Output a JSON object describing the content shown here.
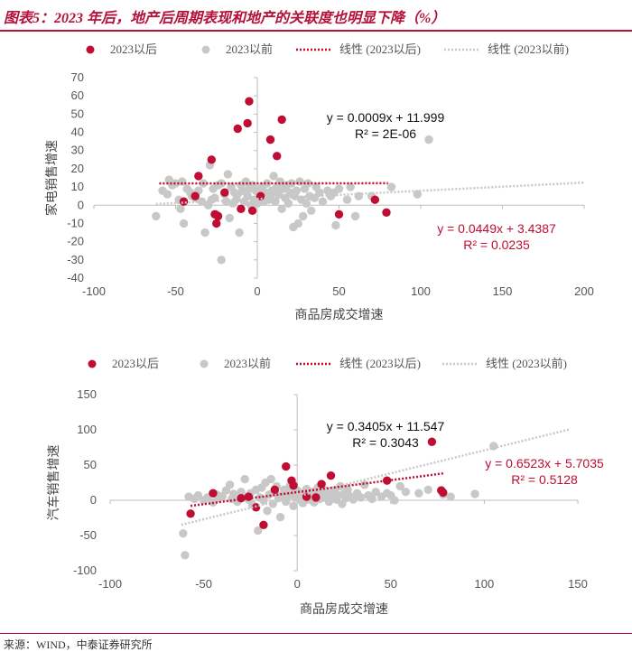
{
  "header": {
    "title": "图表5：2023 年后，地产后周期表现和地产的关联度也明显下降（%）"
  },
  "footer": {
    "source": "来源：WIND，中泰证券研究所"
  },
  "colors": {
    "after": "#c00d33",
    "before": "#c8c8c8",
    "title": "#b5123b"
  },
  "legend": {
    "after": "2023以后",
    "before": "2023以前",
    "trend_after": "线性 (2023以后)",
    "trend_before": "线性 (2023以前)"
  },
  "chart_data": [
    {
      "type": "scatter",
      "title": "",
      "xlabel": "商品房成交增速",
      "ylabel": "家电销售增速",
      "xlim": [
        -100,
        200
      ],
      "ylim": [
        -40,
        70
      ],
      "xticks": [
        -100,
        -50,
        0,
        50,
        100,
        150,
        200
      ],
      "yticks": [
        -40,
        -30,
        -20,
        -10,
        0,
        10,
        20,
        30,
        40,
        50,
        60,
        70
      ],
      "series": [
        {
          "name": "2023以后",
          "points": [
            [
              -45,
              2
            ],
            [
              -38,
              5
            ],
            [
              -36,
              16
            ],
            [
              -28,
              25
            ],
            [
              -26,
              -5
            ],
            [
              -25,
              -10
            ],
            [
              -24,
              -6
            ],
            [
              -20,
              7
            ],
            [
              -12,
              42
            ],
            [
              -10,
              -2
            ],
            [
              -6,
              45
            ],
            [
              -5,
              57
            ],
            [
              -3,
              -3
            ],
            [
              2,
              5
            ],
            [
              8,
              36
            ],
            [
              12,
              27
            ],
            [
              15,
              47
            ],
            [
              50,
              -5
            ],
            [
              72,
              3
            ],
            [
              79,
              -4
            ]
          ]
        },
        {
          "name": "2023以前",
          "points": [
            [
              -62,
              -6
            ],
            [
              -58,
              8
            ],
            [
              -55,
              6
            ],
            [
              -54,
              14
            ],
            [
              -52,
              11
            ],
            [
              -50,
              12
            ],
            [
              -48,
              3
            ],
            [
              -47,
              -2
            ],
            [
              -46,
              13
            ],
            [
              -45,
              -10
            ],
            [
              -43,
              9
            ],
            [
              -41,
              7
            ],
            [
              -40,
              5
            ],
            [
              -38,
              4
            ],
            [
              -36,
              8
            ],
            [
              -34,
              2
            ],
            [
              -33,
              12
            ],
            [
              -32,
              -15
            ],
            [
              -30,
              0
            ],
            [
              -29,
              22
            ],
            [
              -28,
              3
            ],
            [
              -27,
              9
            ],
            [
              -26,
              4
            ],
            [
              -25,
              -5
            ],
            [
              -24,
              11
            ],
            [
              -22,
              -30
            ],
            [
              -22,
              12
            ],
            [
              -20,
              6
            ],
            [
              -19,
              2
            ],
            [
              -18,
              17
            ],
            [
              -17,
              -7
            ],
            [
              -16,
              10
            ],
            [
              -15,
              1
            ],
            [
              -14,
              7
            ],
            [
              -13,
              3
            ],
            [
              -12,
              6
            ],
            [
              -11,
              -15
            ],
            [
              -10,
              11
            ],
            [
              -9,
              8
            ],
            [
              -8,
              2
            ],
            [
              -7,
              13
            ],
            [
              -6,
              5
            ],
            [
              -5,
              9
            ],
            [
              -4,
              0
            ],
            [
              -3,
              11
            ],
            [
              -2,
              3
            ],
            [
              -1,
              8
            ],
            [
              0,
              1
            ],
            [
              1,
              6
            ],
            [
              2,
              9
            ],
            [
              3,
              10
            ],
            [
              4,
              2
            ],
            [
              5,
              7
            ],
            [
              6,
              12
            ],
            [
              7,
              3
            ],
            [
              8,
              5
            ],
            [
              9,
              8
            ],
            [
              10,
              16
            ],
            [
              11,
              2
            ],
            [
              12,
              10
            ],
            [
              13,
              6
            ],
            [
              14,
              13
            ],
            [
              15,
              -2
            ],
            [
              16,
              9
            ],
            [
              17,
              4
            ],
            [
              18,
              11
            ],
            [
              19,
              1
            ],
            [
              20,
              7
            ],
            [
              21,
              12
            ],
            [
              22,
              -12
            ],
            [
              23,
              5
            ],
            [
              24,
              8
            ],
            [
              25,
              -10
            ],
            [
              26,
              13
            ],
            [
              27,
              3
            ],
            [
              28,
              -6
            ],
            [
              29,
              9
            ],
            [
              30,
              1
            ],
            [
              31,
              12
            ],
            [
              32,
              5
            ],
            [
              33,
              -3
            ],
            [
              35,
              4
            ],
            [
              36,
              10
            ],
            [
              38,
              7
            ],
            [
              40,
              2
            ],
            [
              43,
              8
            ],
            [
              45,
              5
            ],
            [
              47,
              7
            ],
            [
              48,
              -11
            ],
            [
              50,
              9
            ],
            [
              55,
              3
            ],
            [
              57,
              10
            ],
            [
              60,
              -6
            ],
            [
              62,
              5
            ],
            [
              70,
              5
            ],
            [
              82,
              10
            ],
            [
              98,
              6
            ],
            [
              105,
              36
            ]
          ]
        }
      ],
      "trendlines": [
        {
          "series": "2023以后",
          "slope": 0.0009,
          "intercept": 11.999,
          "x_range": [
            -60,
            80
          ],
          "equation": "y = 0.0009x + 11.999",
          "r2": "R² = 2E-06"
        },
        {
          "series": "2023以前",
          "slope": 0.0449,
          "intercept": 3.4387,
          "x_range": [
            -62,
            200
          ],
          "equation": "y = 0.0449x + 3.4387",
          "r2": "R² = 0.0235"
        }
      ]
    },
    {
      "type": "scatter",
      "title": "",
      "xlabel": "商品房成交增速",
      "ylabel": "汽车销售增速",
      "xlim": [
        -100,
        150
      ],
      "ylim": [
        -100,
        150
      ],
      "xticks": [
        -100,
        -50,
        0,
        50,
        100,
        150
      ],
      "yticks": [
        -100,
        -50,
        0,
        50,
        100,
        150
      ],
      "series": [
        {
          "name": "2023以后",
          "points": [
            [
              -57,
              -19
            ],
            [
              -45,
              10
            ],
            [
              -30,
              3
            ],
            [
              -26,
              5
            ],
            [
              -22,
              -10
            ],
            [
              -18,
              -35
            ],
            [
              -12,
              15
            ],
            [
              -6,
              48
            ],
            [
              -3,
              28
            ],
            [
              -2,
              21
            ],
            [
              5,
              5
            ],
            [
              10,
              4
            ],
            [
              13,
              23
            ],
            [
              18,
              35
            ],
            [
              48,
              28
            ],
            [
              72,
              83
            ],
            [
              77,
              14
            ],
            [
              78,
              11
            ]
          ]
        },
        {
          "name": "2023以前",
          "points": [
            [
              -61,
              -47
            ],
            [
              -60,
              -78
            ],
            [
              -58,
              5
            ],
            [
              -55,
              2
            ],
            [
              -53,
              7
            ],
            [
              -50,
              0
            ],
            [
              -48,
              4
            ],
            [
              -45,
              -3
            ],
            [
              -43,
              8
            ],
            [
              -42,
              3
            ],
            [
              -40,
              6
            ],
            [
              -38,
              14
            ],
            [
              -36,
              22
            ],
            [
              -35,
              2
            ],
            [
              -34,
              9
            ],
            [
              -32,
              -2
            ],
            [
              -30,
              12
            ],
            [
              -29,
              6
            ],
            [
              -28,
              30
            ],
            [
              -26,
              1
            ],
            [
              -25,
              10
            ],
            [
              -24,
              -6
            ],
            [
              -22,
              15
            ],
            [
              -21,
              -43
            ],
            [
              -20,
              4
            ],
            [
              -19,
              18
            ],
            [
              -18,
              0
            ],
            [
              -17,
              25
            ],
            [
              -16,
              -15
            ],
            [
              -15,
              8
            ],
            [
              -14,
              30
            ],
            [
              -13,
              -5
            ],
            [
              -12,
              12
            ],
            [
              -11,
              20
            ],
            [
              -10,
              3
            ],
            [
              -9,
              -24
            ],
            [
              -8,
              8
            ],
            [
              -7,
              15
            ],
            [
              -6,
              -2
            ],
            [
              -5,
              6
            ],
            [
              -4,
              20
            ],
            [
              -3,
              10
            ],
            [
              -2,
              -8
            ],
            [
              -1,
              4
            ],
            [
              0,
              14
            ],
            [
              1,
              2
            ],
            [
              2,
              10
            ],
            [
              3,
              -4
            ],
            [
              4,
              8
            ],
            [
              5,
              16
            ],
            [
              6,
              1
            ],
            [
              7,
              5
            ],
            [
              8,
              12
            ],
            [
              9,
              -3
            ],
            [
              10,
              7
            ],
            [
              11,
              18
            ],
            [
              12,
              2
            ],
            [
              13,
              10
            ],
            [
              14,
              4
            ],
            [
              15,
              14
            ],
            [
              16,
              6
            ],
            [
              17,
              -2
            ],
            [
              18,
              9
            ],
            [
              19,
              3
            ],
            [
              20,
              13
            ],
            [
              21,
              1
            ],
            [
              22,
              7
            ],
            [
              23,
              20
            ],
            [
              24,
              -5
            ],
            [
              25,
              9
            ],
            [
              26,
              3
            ],
            [
              27,
              15
            ],
            [
              28,
              6
            ],
            [
              30,
              1
            ],
            [
              32,
              10
            ],
            [
              34,
              4
            ],
            [
              36,
              22
            ],
            [
              38,
              7
            ],
            [
              40,
              2
            ],
            [
              42,
              12
            ],
            [
              45,
              5
            ],
            [
              48,
              10
            ],
            [
              50,
              7
            ],
            [
              52,
              0
            ],
            [
              55,
              20
            ],
            [
              58,
              12
            ],
            [
              65,
              10
            ],
            [
              70,
              15
            ],
            [
              78,
              8
            ],
            [
              82,
              5
            ],
            [
              95,
              9
            ],
            [
              105,
              77
            ]
          ]
        }
      ],
      "trendlines": [
        {
          "series": "2023以后",
          "slope": 0.3405,
          "intercept": 11.547,
          "x_range": [
            -57,
            78
          ],
          "equation": "y = 0.3405x + 11.547",
          "r2": "R² = 0.3043"
        },
        {
          "series": "2023以前",
          "slope": 0.6523,
          "intercept": 5.7035,
          "x_range": [
            -62,
            146
          ],
          "equation": "y = 0.6523x + 5.7035",
          "r2": "R² = 0.5128"
        }
      ]
    }
  ]
}
